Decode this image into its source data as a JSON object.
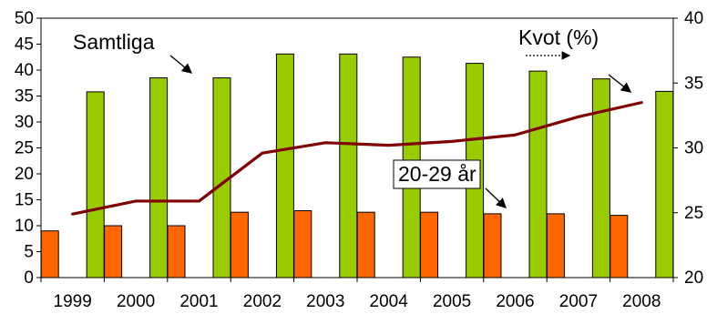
{
  "chart_data": {
    "type": "bar",
    "categories": [
      "1999",
      "2000",
      "2001",
      "2002",
      "2003",
      "2004",
      "2005",
      "2006",
      "2007",
      "2008"
    ],
    "series": [
      {
        "key": "age_20_29",
        "name": "20-29 år",
        "axis": "left",
        "chart_type": "bar",
        "color": "#FF6600",
        "values": [
          9,
          10,
          10,
          12.6,
          12.9,
          12.6,
          12.6,
          12.3,
          12.3,
          12
        ]
      },
      {
        "key": "all",
        "name": "Samtliga",
        "axis": "left",
        "chart_type": "bar",
        "color": "#99CC00",
        "values": [
          35.8,
          38.5,
          38.5,
          43.1,
          43.1,
          42.5,
          41.3,
          39.8,
          38.3,
          35.9
        ]
      },
      {
        "key": "ratio",
        "name": "Kvot (%)",
        "axis": "right",
        "chart_type": "line",
        "color": "#800000",
        "values": [
          24.9,
          25.9,
          25.9,
          29.6,
          30.4,
          30.2,
          30.5,
          31,
          32.4,
          33.5
        ]
      }
    ],
    "y_left": {
      "ylim": [
        0,
        50
      ],
      "ticks": [
        "0",
        "5",
        "10",
        "15",
        "20",
        "25",
        "30",
        "35",
        "40",
        "45",
        "50"
      ]
    },
    "y_right": {
      "ylim": [
        20,
        40
      ],
      "ticks": [
        "20",
        "25",
        "30",
        "35",
        "40"
      ]
    },
    "annotations": {
      "samtliga": "Samtliga",
      "kvot": "Kvot (%)",
      "age": "20-29 år"
    },
    "title": "",
    "xlabel": "",
    "ylabel": "",
    "grid": false,
    "legend": "none"
  }
}
